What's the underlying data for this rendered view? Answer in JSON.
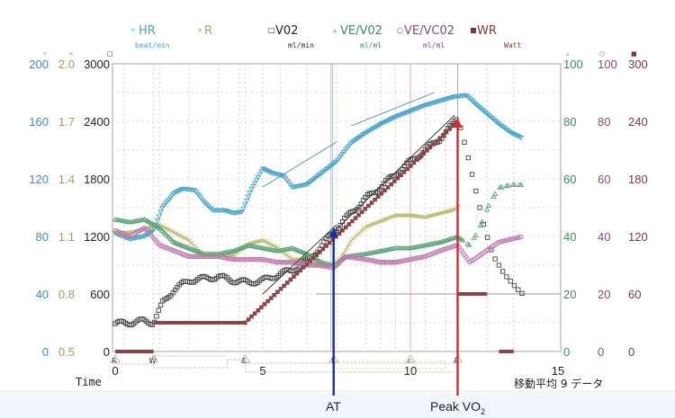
{
  "chart_data": {
    "type": "line",
    "title": "",
    "xlabel": "Time",
    "x_ticks": [
      0,
      5,
      10,
      15
    ],
    "xlim": [
      0,
      15
    ],
    "footnote": "移動平均 9 データ",
    "grid": true,
    "legend_position": "top",
    "annotations": [
      {
        "label": "AT",
        "x": 7.4,
        "color": "#1a2fa8"
      },
      {
        "label": "Peak VO2",
        "label_main": "Peak VO",
        "label_sub": "2",
        "x": 11.6,
        "color": "#e0262a"
      }
    ],
    "phase_markers": [
      {
        "label": "R",
        "x": 0.0
      },
      {
        "label": "W",
        "x": 1.3
      },
      {
        "label": "E",
        "x": 4.4
      },
      {
        "label": "t",
        "x": 7.4
      },
      {
        "label": "r",
        "x": 10.0
      },
      {
        "label": "R",
        "x": 11.6
      }
    ],
    "axes": [
      {
        "id": "hr",
        "side": "left",
        "color": "#3d8fb0",
        "ticks": [
          "0",
          "40",
          "80",
          "120",
          "160",
          "200"
        ],
        "range": [
          0,
          200
        ]
      },
      {
        "id": "r",
        "side": "left",
        "color": "#a0a060",
        "ticks": [
          "0.5",
          "0.8",
          "1.1",
          "1.4",
          "1.7",
          "2.0"
        ],
        "range": [
          0.5,
          2.0
        ]
      },
      {
        "id": "vo2",
        "side": "left",
        "color": "#222222",
        "ticks": [
          "0",
          "600",
          "1200",
          "1800",
          "2400",
          "3000"
        ],
        "range": [
          0,
          3000
        ]
      },
      {
        "id": "vevo2",
        "side": "right",
        "color": "#3e8a5e",
        "ticks": [
          "0",
          "20",
          "40",
          "60",
          "80",
          "100"
        ],
        "range": [
          0,
          100
        ]
      },
      {
        "id": "vevco2",
        "side": "right",
        "color": "#8a4a78",
        "ticks": [
          "0",
          "20",
          "40",
          "60",
          "80",
          "100"
        ],
        "range": [
          0,
          100
        ]
      },
      {
        "id": "wr",
        "side": "right",
        "color": "#7a3a3a",
        "ticks": [
          "0",
          "60",
          "120",
          "180",
          "240",
          "300"
        ],
        "range": [
          0,
          300
        ]
      }
    ],
    "series": [
      {
        "name": "HR",
        "unit": "beat/min",
        "marker": "▿",
        "color": "#4aa3c8",
        "axis": "hr",
        "x": [
          0,
          0.5,
          1.0,
          1.3,
          1.6,
          2.0,
          2.3,
          2.7,
          3.0,
          3.3,
          3.7,
          4.0,
          4.3,
          4.6,
          5.0,
          5.3,
          5.7,
          6.0,
          6.5,
          7.0,
          7.5,
          8.0,
          8.5,
          9.0,
          9.5,
          10.0,
          10.5,
          11.0,
          11.5,
          11.9,
          12.2,
          12.6,
          13.0,
          13.4,
          13.8
        ],
        "values": [
          82,
          78,
          80,
          84,
          100,
          110,
          113,
          112,
          104,
          98,
          98,
          96,
          97,
          112,
          127,
          124,
          122,
          114,
          116,
          124,
          132,
          145,
          152,
          158,
          163,
          167,
          171,
          174,
          177,
          178,
          172,
          165,
          158,
          152,
          148
        ]
      },
      {
        "name": "R",
        "unit": "",
        "marker": "×",
        "color": "#b8b86a",
        "axis": "r",
        "x": [
          0,
          0.5,
          1.0,
          1.5,
          2.0,
          2.5,
          3.0,
          3.5,
          4.0,
          4.5,
          5.0,
          5.5,
          6.0,
          6.5,
          7.0,
          7.4,
          7.7,
          8.0,
          8.5,
          9.0,
          9.5,
          10.0,
          10.5,
          11.0,
          11.5,
          11.8,
          12.2,
          12.6,
          13.0,
          13.4,
          13.8
        ],
        "values": [
          1.12,
          1.12,
          1.14,
          1.16,
          1.12,
          1.08,
          1.0,
          1.0,
          1.0,
          1.06,
          1.08,
          1.04,
          0.98,
          0.98,
          0.94,
          0.95,
          1.0,
          1.08,
          1.15,
          1.18,
          1.21,
          1.21,
          1.2,
          1.22,
          1.24,
          1.28,
          1.5,
          1.75,
          1.7,
          1.62,
          1.56
        ]
      },
      {
        "name": "VO2",
        "unit": "ml/min",
        "marker": "□",
        "color": "#444444",
        "axis": "vo2",
        "x": [
          0,
          0.5,
          1.0,
          1.3,
          1.6,
          2.0,
          2.5,
          3.0,
          3.5,
          4.0,
          4.5,
          5.0,
          5.5,
          6.0,
          6.5,
          7.0,
          7.4,
          8.0,
          8.5,
          9.0,
          9.5,
          10.0,
          10.5,
          11.0,
          11.4,
          11.6,
          11.9,
          12.2,
          12.5,
          12.8,
          13.2,
          13.6,
          13.8
        ],
        "values": [
          290,
          300,
          320,
          300,
          500,
          650,
          740,
          760,
          780,
          740,
          720,
          740,
          800,
          850,
          950,
          1100,
          1250,
          1450,
          1600,
          1720,
          1850,
          1980,
          2100,
          2220,
          2350,
          2450,
          2100,
          1700,
          1300,
          1000,
          800,
          660,
          600
        ]
      },
      {
        "name": "VE/VO2",
        "unit": "ml/ml",
        "marker": "▵",
        "color": "#5ea37a",
        "axis": "vevo2",
        "x": [
          0,
          0.5,
          1.0,
          1.5,
          2.0,
          2.5,
          3.0,
          3.5,
          4.0,
          4.5,
          5.0,
          5.5,
          6.0,
          6.5,
          7.0,
          7.4,
          7.8,
          8.5,
          9.0,
          9.5,
          10.0,
          10.5,
          11.0,
          11.6,
          12.0,
          12.3,
          12.7,
          13.0,
          13.4,
          13.8
        ],
        "values": [
          46,
          45,
          46,
          43,
          38,
          36,
          34,
          34,
          35,
          37,
          36,
          35,
          36,
          34,
          31,
          30,
          33,
          34,
          35,
          36,
          36,
          37,
          38,
          40,
          37,
          42,
          52,
          57,
          58,
          58
        ]
      },
      {
        "name": "VE/VCO2",
        "unit": "ml/ml",
        "marker": "○",
        "color": "#c07ab0",
        "axis": "vevco2",
        "x": [
          0,
          0.5,
          1.0,
          1.5,
          2.0,
          2.5,
          3.0,
          3.5,
          4.0,
          4.5,
          5.0,
          5.5,
          6.0,
          6.5,
          7.0,
          7.4,
          7.8,
          8.5,
          9.0,
          9.5,
          10.0,
          10.5,
          11.0,
          11.6,
          12.0,
          12.3,
          12.7,
          13.0,
          13.4,
          13.8
        ],
        "values": [
          42,
          40,
          43,
          37,
          35,
          33,
          33,
          33,
          32,
          32,
          32,
          31,
          31,
          30,
          30,
          29,
          33,
          32,
          31,
          31,
          32,
          33,
          35,
          37,
          31,
          33,
          36,
          38,
          39,
          40
        ]
      },
      {
        "name": "WR",
        "unit": "Watt",
        "marker": "■",
        "color": "#8a4646",
        "axis": "wr",
        "x": [
          0,
          1.3,
          1.31,
          4.4,
          11.6,
          11.61,
          12.6,
          12.61,
          13.2,
          13.8
        ],
        "values": [
          0,
          0,
          30,
          30,
          240,
          60,
          60,
          0,
          0,
          0
        ]
      }
    ]
  },
  "legend": [
    {
      "marker": "▿",
      "name": "HR",
      "unit": "beat/min",
      "color": "#4aa3c8"
    },
    {
      "marker": "×",
      "name": "R",
      "unit": "",
      "color": "#a5a56a"
    },
    {
      "marker": "□",
      "name": "V02",
      "unit": "ml/min",
      "color": "#222222"
    },
    {
      "marker": "▵",
      "name": "VE/V02",
      "unit": "ml/ml",
      "color": "#3e8a5e"
    },
    {
      "marker": "○",
      "name": "VE/VC02",
      "unit": "ml/ml",
      "color": "#8a4a78"
    },
    {
      "marker": "■",
      "name": "WR",
      "unit": "Watt",
      "color": "#7a3a3a"
    }
  ],
  "xaxis": {
    "title": "Time",
    "ticks": [
      "0",
      "5",
      "10",
      "15"
    ],
    "footnote": "移動平均 9 データ"
  },
  "annotations": {
    "at_label": "AT",
    "peak_label": "Peak VO",
    "peak_sub": "2"
  }
}
